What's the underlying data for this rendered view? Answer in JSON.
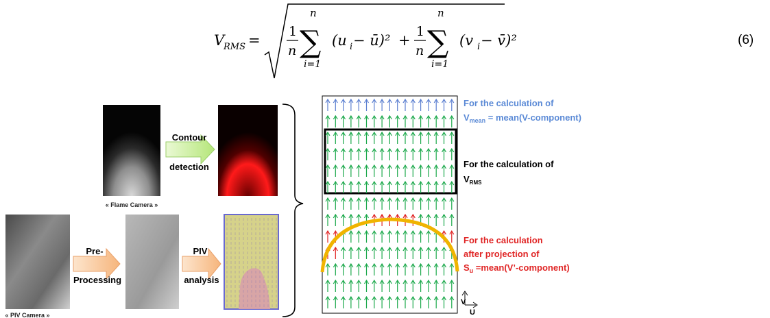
{
  "equation": {
    "number": "(6)",
    "lhs": "V",
    "lhs_sub": "RMS",
    "frac_num": "1",
    "frac_den": "n",
    "sum_upper": "n",
    "sum_lower": "i=1",
    "term1": "(u",
    "term1_i": "i",
    "term1_rest": " − ū)²",
    "term2": "(v",
    "term2_i": "i",
    "term2_rest": " − v̄)²"
  },
  "figure": {
    "flame_camera_caption": "« Flame Camera »",
    "piv_camera_caption": "« PIV Camera »",
    "contour_label_1": "Contour",
    "contour_label_2": "detection",
    "preproc_label_1": "Pre-",
    "preproc_label_2": "Processing",
    "piv_label_1": "PIV",
    "piv_label_2": "analysis",
    "mean_label_line1": "For the calculation of",
    "mean_label_v": "V",
    "mean_label_sub": "mean",
    "mean_label_rest": " = mean(V-component)",
    "rms_label_line1": "For the calculation of",
    "rms_label_v": "V",
    "rms_label_sub": "RMS",
    "su_label_line1": "For the calculation",
    "su_label_line2": "after projection of",
    "su_label_s": "S",
    "su_label_sub": "u",
    "su_label_rest": " =mean(V’-component)",
    "axis_v": "V",
    "axis_u": "U",
    "colors": {
      "blue_arrow": "#5b7fd0",
      "green_arrow": "#1aa84a",
      "red_arrow": "#e02020",
      "blue_text": "#5b8ad6",
      "red_text": "#e02525",
      "flame_front": "#f0b400",
      "arrow_box_fill": "#c7ef96",
      "arrow_box_stroke": "#8fbf60"
    }
  }
}
